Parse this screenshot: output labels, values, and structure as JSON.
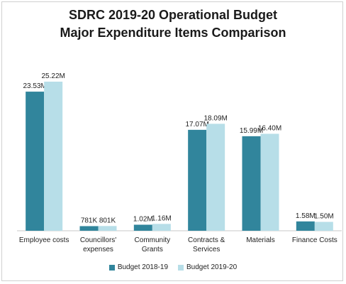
{
  "chart_data": {
    "type": "bar",
    "title": "SDRC 2019-20 Operational Budget",
    "subtitle": "Major Expenditure Items Comparison",
    "categories": [
      [
        "Employee costs"
      ],
      [
        "Councillors'",
        "expenses"
      ],
      [
        "Community",
        "Grants"
      ],
      [
        "Contracts &",
        "Services"
      ],
      [
        "Materials"
      ],
      [
        "Finance Costs"
      ]
    ],
    "series": [
      {
        "name": "Budget 2018-19",
        "color": "#31859c",
        "values": [
          23.53,
          0.781,
          1.02,
          17.07,
          15.99,
          1.58
        ],
        "labels": [
          "23.53M",
          "781K",
          "1.02M",
          "17.07M",
          "15.99M",
          "1.58M"
        ]
      },
      {
        "name": "Budget 2019-20",
        "color": "#b7dee8",
        "values": [
          25.22,
          0.801,
          1.16,
          18.09,
          16.4,
          1.5
        ],
        "labels": [
          "25.22M",
          "801K",
          "1.16M",
          "18.09M",
          "16.40M",
          "1.50M"
        ]
      }
    ],
    "ylim": [
      0,
      25.22
    ],
    "grid": false,
    "legend_position": "bottom"
  }
}
